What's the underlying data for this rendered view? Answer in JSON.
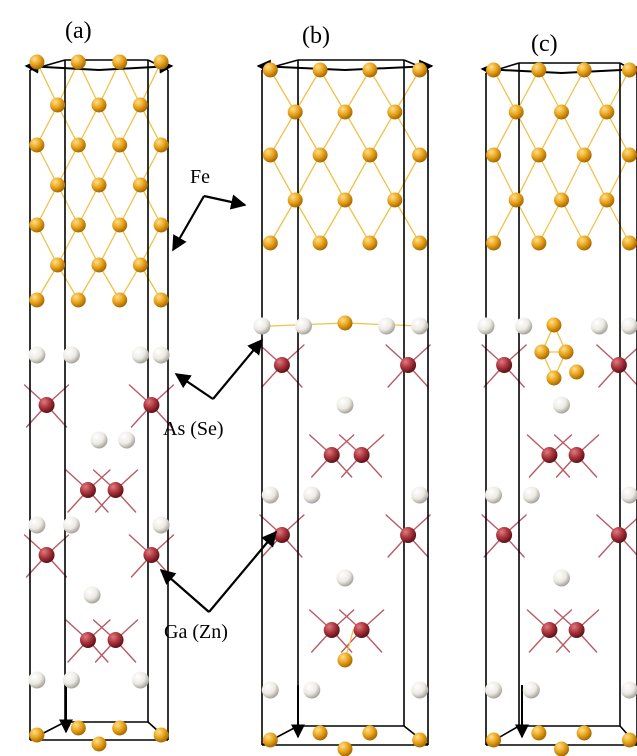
{
  "panels": [
    {
      "id": "a",
      "label": "(a)"
    },
    {
      "id": "b",
      "label": "(b)"
    },
    {
      "id": "c",
      "label": "(c)"
    }
  ],
  "annotations": {
    "fe": "Fe",
    "as_se": "As (Se)",
    "ga_zn": "Ga (Zn)"
  },
  "colors": {
    "fe_atom": "#E8A21A",
    "fe_bond": "#F0C24A",
    "as_atom": "#F4F2EE",
    "ga_atom": "#A8323A",
    "ga_bond": "#B85A66",
    "cell_line": "#000000"
  }
}
